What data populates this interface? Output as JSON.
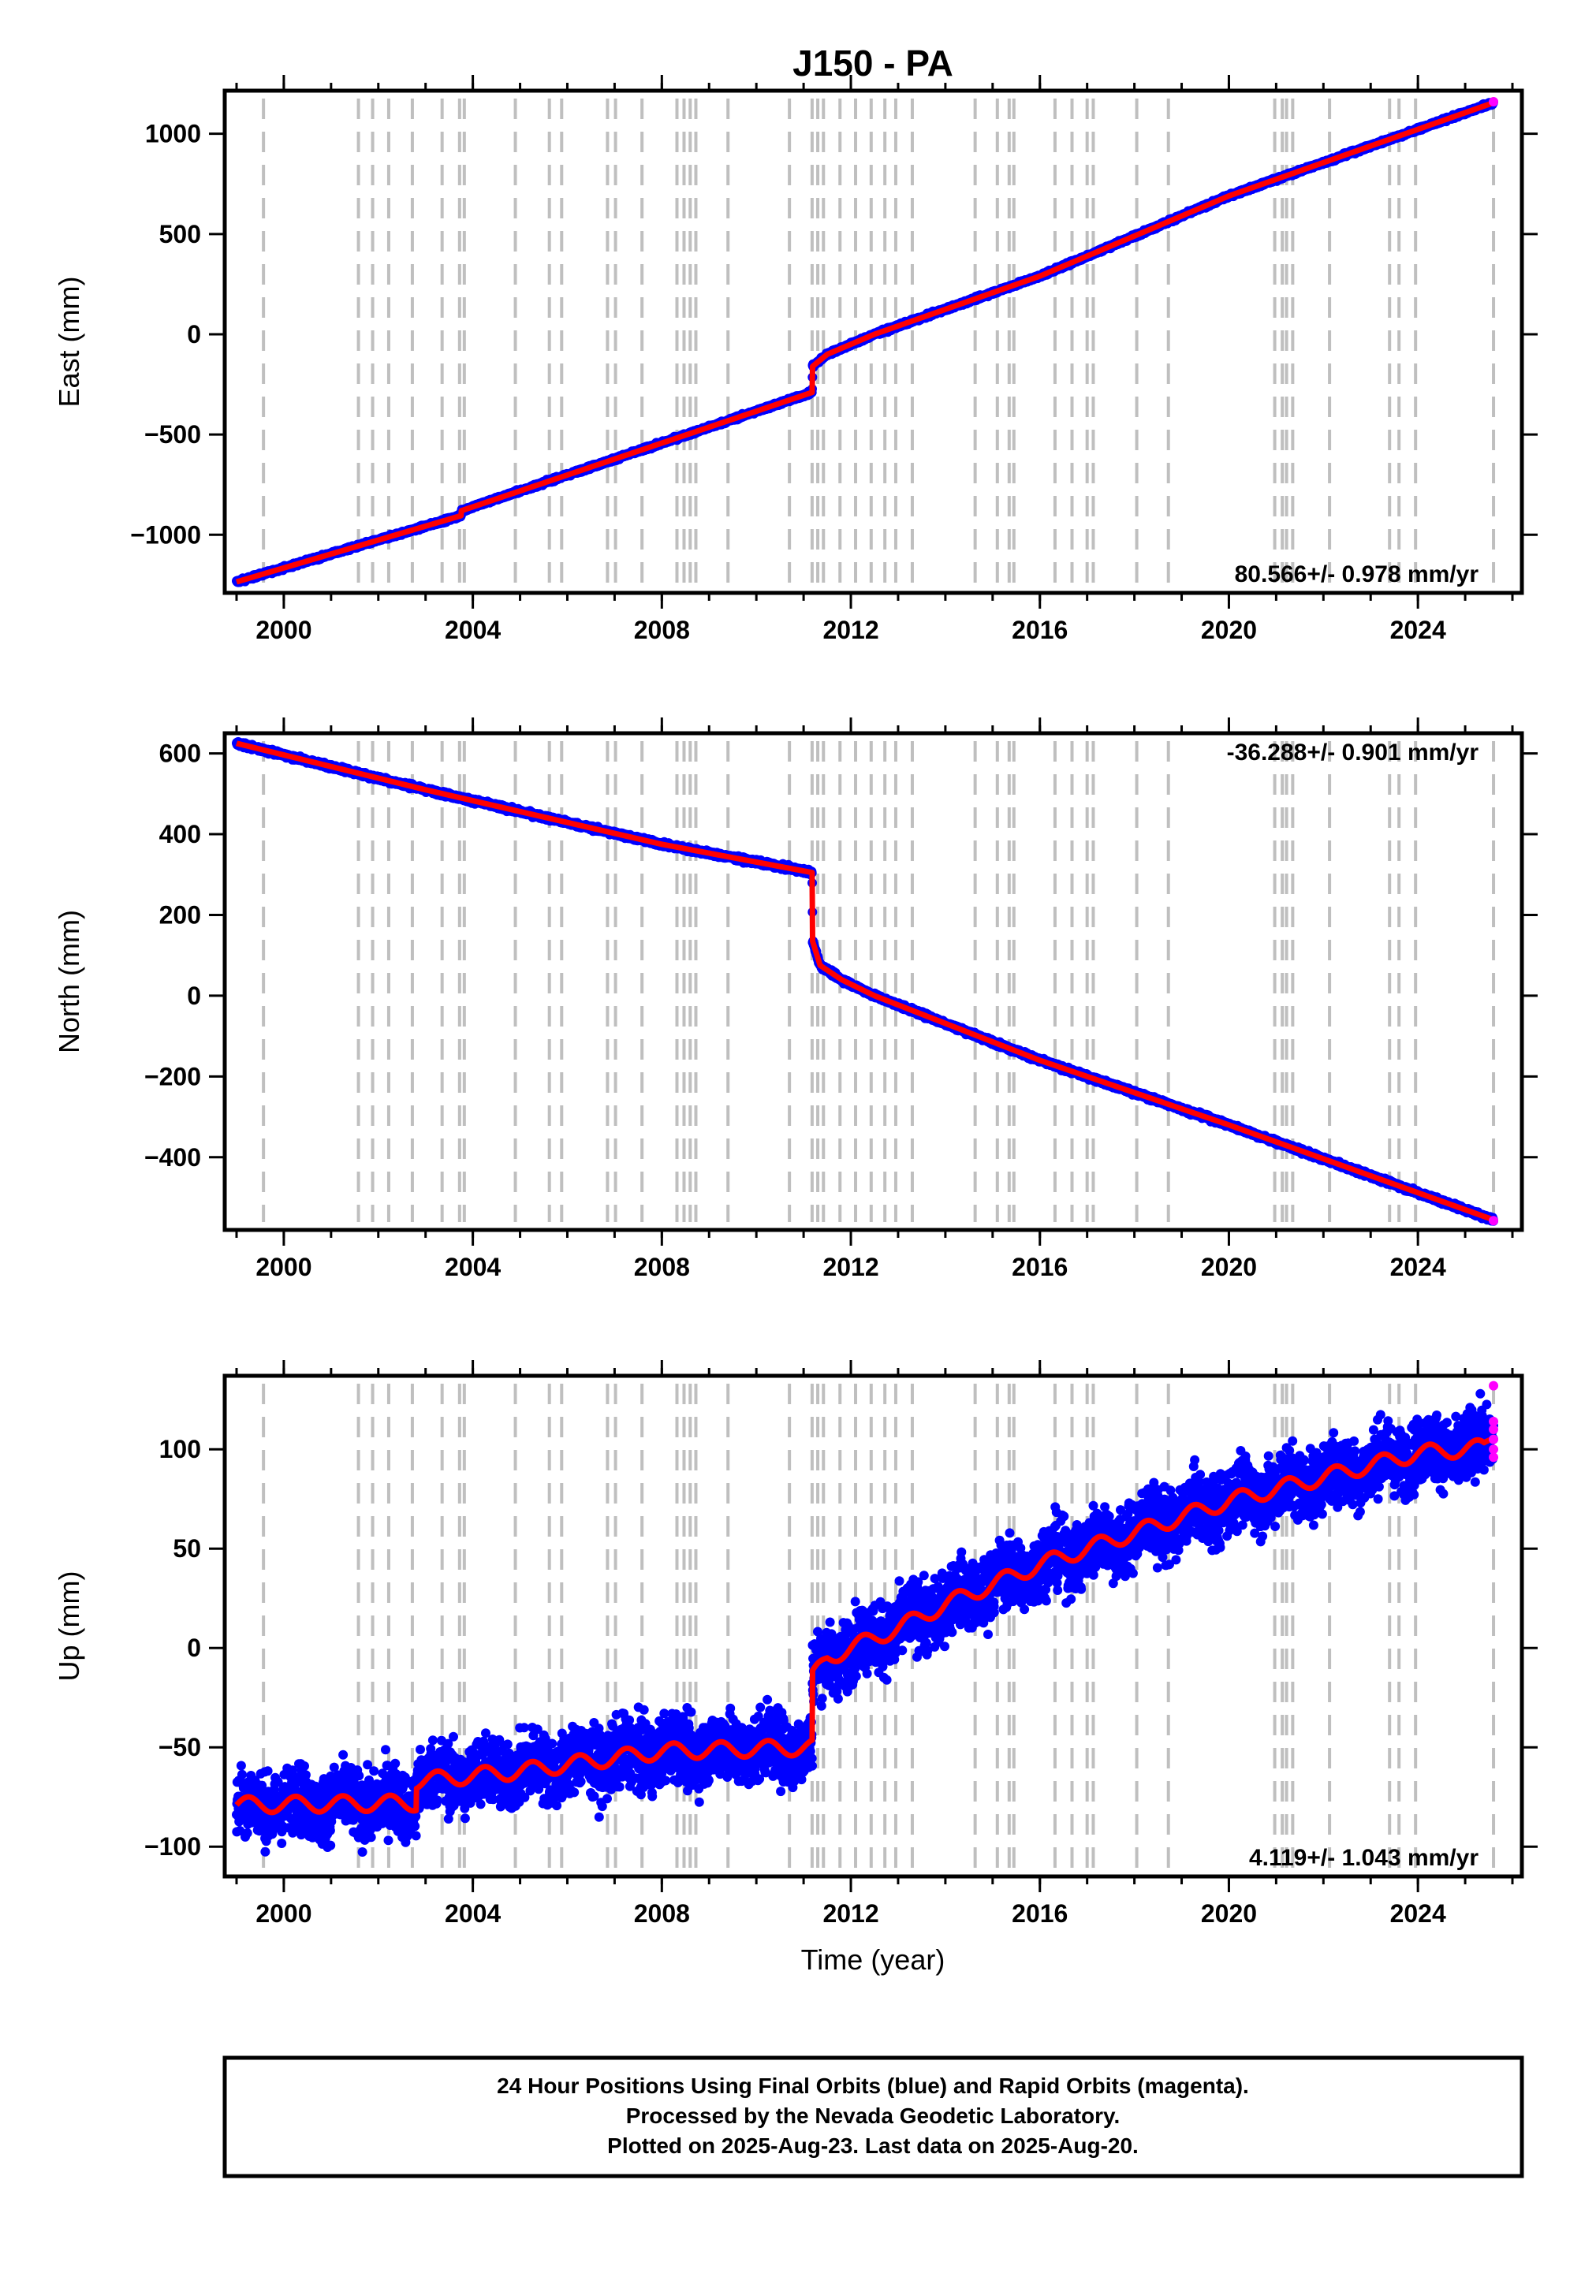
{
  "title": "J150 - PA",
  "x_axis_label": "Time (year)",
  "chart_data": [
    {
      "type": "scatter",
      "ylabel": "East (mm)",
      "xlim": [
        1998.75,
        2026.2
      ],
      "ylim": [
        -1290,
        1215
      ],
      "xticks": [
        2000,
        2004,
        2008,
        2012,
        2016,
        2020,
        2024
      ],
      "yticks": [
        -1000,
        -500,
        0,
        500,
        1000
      ],
      "ytick_labels": [
        "−1000",
        "−500",
        "0",
        "500",
        "1000"
      ],
      "rate_text": "80.566+/- 0.978 mm/yr",
      "rate_position": "bottom-right",
      "noise": 6,
      "model_series": {
        "name": "model",
        "color": "#ff0000",
        "x": [
          1999.0,
          2003.75,
          2003.76,
          2011.18,
          2011.19,
          2011.5,
          2012.5,
          2016.0,
          2020.0,
          2025.6
        ],
        "y": [
          -1235,
          -905,
          -880,
          -290,
          -160,
          -100,
          0,
          290,
          690,
          1155
        ]
      },
      "final_orbits_color": "#0000ff",
      "rapid_orbits": {
        "x": [
          2025.6
        ],
        "y": [
          1160
        ],
        "color": "#ff00ff"
      }
    },
    {
      "type": "scatter",
      "ylabel": "North (mm)",
      "xlim": [
        1998.75,
        2026.2
      ],
      "ylim": [
        -580,
        650
      ],
      "xticks": [
        2000,
        2004,
        2008,
        2012,
        2016,
        2020,
        2024
      ],
      "yticks": [
        -400,
        -200,
        0,
        200,
        400,
        600
      ],
      "ytick_labels": [
        "−400",
        "−200",
        "0",
        "200",
        "400",
        "600"
      ],
      "rate_text": "-36.288+/- 0.901 mm/yr",
      "rate_position": "top-right",
      "noise": 4,
      "model_series": {
        "name": "model",
        "color": "#ff0000",
        "x": [
          1999.0,
          2003.0,
          2008.0,
          2011.18,
          2011.19,
          2011.35,
          2011.8,
          2012.5,
          2016.0,
          2020.0,
          2025.6
        ],
        "y": [
          625,
          510,
          375,
          305,
          135,
          75,
          40,
          0,
          -160,
          -320,
          -555
        ]
      },
      "final_orbits_color": "#0000ff",
      "rapid_orbits": {
        "x": [
          2025.6
        ],
        "y": [
          -557
        ],
        "color": "#ff00ff"
      }
    },
    {
      "type": "scatter",
      "ylabel": "Up (mm)",
      "xlim": [
        1998.75,
        2026.2
      ],
      "ylim": [
        -115,
        137
      ],
      "xticks": [
        2000,
        2004,
        2008,
        2012,
        2016,
        2020,
        2024
      ],
      "yticks": [
        -100,
        -50,
        0,
        50,
        100
      ],
      "ytick_labels": [
        "−100",
        "−50",
        "0",
        "50",
        "100"
      ],
      "rate_text": "4.119+/- 1.043 mm/yr",
      "rate_position": "bottom-right",
      "noise": 12,
      "seasonal_amplitude": 4,
      "model_series": {
        "name": "model",
        "color": "#ff0000",
        "x": [
          1999.0,
          2002.8,
          2002.81,
          2005.0,
          2008.0,
          2011.18,
          2011.19,
          2011.5,
          2012.0,
          2013.0,
          2014.0,
          2016.0,
          2018.0,
          2020.0,
          2022.0,
          2024.0,
          2025.4,
          2025.6
        ],
        "y": [
          -79,
          -78,
          -67,
          -62,
          -52,
          -50,
          -15,
          -5,
          0,
          10,
          22,
          42,
          58,
          74,
          86,
          98,
          101,
          108
        ]
      },
      "final_orbits_color": "#0000ff",
      "rapid_orbits": {
        "x": [
          2025.6,
          2025.6,
          2025.6,
          2025.6,
          2025.6,
          2025.6
        ],
        "y": [
          132,
          114,
          110,
          105,
          100,
          96
        ],
        "color": "#ff00ff"
      }
    }
  ],
  "equipment_change_epochs": [
    1999.57,
    2001.58,
    2001.88,
    2002.22,
    2002.72,
    2003.35,
    2003.72,
    2003.82,
    2004.9,
    2005.62,
    2005.88,
    2006.85,
    2007.02,
    2007.58,
    2008.32,
    2008.47,
    2008.6,
    2008.72,
    2009.4,
    2010.7,
    2011.18,
    2011.3,
    2011.42,
    2011.77,
    2012.1,
    2012.43,
    2012.72,
    2012.95,
    2013.3,
    2014.63,
    2015.1,
    2015.35,
    2015.45,
    2016.32,
    2016.68,
    2017.0,
    2017.13,
    2018.05,
    2018.72,
    2020.97,
    2021.13,
    2021.22,
    2021.35,
    2022.13,
    2023.4,
    2023.6,
    2023.95,
    2025.6
  ],
  "footer": {
    "line1": "24 Hour Positions Using Final Orbits (blue) and Rapid Orbits (magenta).",
    "line2": "Processed by the Nevada Geodetic Laboratory.",
    "line3": "Plotted on 2025-Aug-23. Last data on 2025-Aug-20."
  }
}
